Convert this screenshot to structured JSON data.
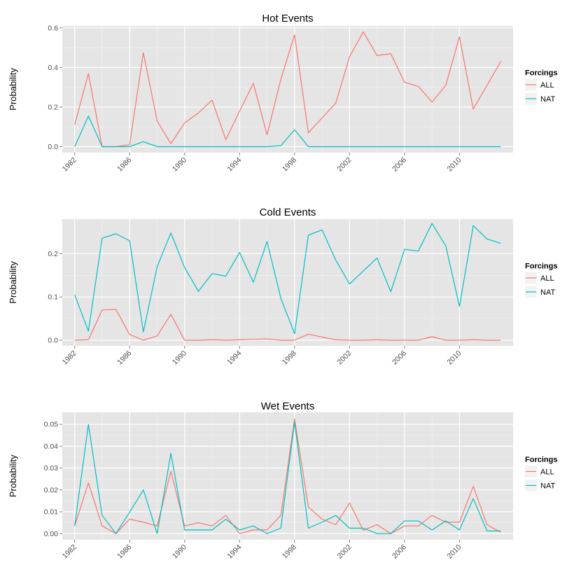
{
  "colors": {
    "ALL": "#F8766D",
    "NAT": "#00BFC4",
    "panel": "#E5E5E5",
    "grid_major": "#FFFFFF",
    "grid_minor": "#F2F2F2"
  },
  "chart_data": [
    {
      "type": "line",
      "title": "Hot Events",
      "ylabel": "Probability",
      "xlabel": "",
      "ylim": [
        -0.03,
        0.61
      ],
      "yticks": [
        0.0,
        0.2,
        0.4,
        0.6
      ],
      "ytick_labels": [
        "0.0",
        "0.2",
        "0.4",
        "0.6"
      ],
      "xlim": [
        1981.1,
        2013.9
      ],
      "xticks": [
        1982,
        1986,
        1990,
        1994,
        1998,
        2002,
        2006,
        2010
      ],
      "xtick_labels": [
        "1982",
        "1986",
        "1990",
        "1994",
        "1998",
        "2002",
        "2006",
        "2010"
      ],
      "grid": true,
      "legend": {
        "title": "Forcings",
        "position": "right",
        "entries": [
          "ALL",
          "NAT"
        ]
      },
      "x": [
        1982,
        1983,
        1984,
        1985,
        1986,
        1987,
        1988,
        1989,
        1990,
        1991,
        1992,
        1993,
        1994,
        1995,
        1996,
        1997,
        1998,
        1999,
        2000,
        2001,
        2002,
        2003,
        2004,
        2005,
        2006,
        2007,
        2008,
        2009,
        2010,
        2011,
        2012,
        2013
      ],
      "series": [
        {
          "name": "ALL",
          "values": [
            0.11,
            0.37,
            0.0,
            0.0,
            0.01,
            0.475,
            0.13,
            0.015,
            0.12,
            0.17,
            0.235,
            0.035,
            0.18,
            0.32,
            0.06,
            0.34,
            0.565,
            0.07,
            0.145,
            0.22,
            0.455,
            0.58,
            0.46,
            0.47,
            0.325,
            0.305,
            0.225,
            0.31,
            0.555,
            0.19,
            0.31,
            0.43
          ]
        },
        {
          "name": "NAT",
          "values": [
            0.0,
            0.155,
            0.0,
            0.0,
            0.0,
            0.025,
            0.0,
            0.0,
            0.0,
            0.0,
            0.0,
            0.0,
            0.0,
            0.0,
            0.0,
            0.005,
            0.085,
            0.0,
            0.0,
            0.0,
            0.0,
            0.0,
            0.0,
            0.0,
            0.0,
            0.0,
            0.0,
            0.0,
            0.0,
            0.0,
            0.0,
            0.0
          ]
        }
      ]
    },
    {
      "type": "line",
      "title": "Cold Events",
      "ylabel": "Probability",
      "xlabel": "",
      "ylim": [
        -0.013,
        0.28
      ],
      "yticks": [
        0.0,
        0.1,
        0.2
      ],
      "ytick_labels": [
        "0.0",
        "0.1",
        "0.2"
      ],
      "xlim": [
        1981.1,
        2013.9
      ],
      "xticks": [
        1982,
        1986,
        1990,
        1994,
        1998,
        2002,
        2006,
        2010
      ],
      "xtick_labels": [
        "1982",
        "1986",
        "1990",
        "1994",
        "1998",
        "2002",
        "2006",
        "2010"
      ],
      "grid": true,
      "legend": {
        "title": "Forcings",
        "position": "right",
        "entries": [
          "ALL",
          "NAT"
        ]
      },
      "x": [
        1982,
        1983,
        1984,
        1985,
        1986,
        1987,
        1988,
        1989,
        1990,
        1991,
        1992,
        1993,
        1994,
        1995,
        1996,
        1997,
        1998,
        1999,
        2000,
        2001,
        2002,
        2003,
        2004,
        2005,
        2006,
        2007,
        2008,
        2009,
        2010,
        2011,
        2012,
        2013
      ],
      "series": [
        {
          "name": "ALL",
          "values": [
            0.0,
            0.001,
            0.07,
            0.071,
            0.013,
            0.0,
            0.01,
            0.06,
            0.0,
            0.0,
            0.001,
            0.0,
            0.001,
            0.002,
            0.003,
            0.0,
            0.0,
            0.014,
            0.007,
            0.001,
            0.0,
            0.0,
            0.001,
            0.0,
            0.0,
            0.0,
            0.008,
            0.0,
            0.0,
            0.001,
            0.0,
            0.0
          ]
        },
        {
          "name": "NAT",
          "values": [
            0.105,
            0.021,
            0.236,
            0.246,
            0.23,
            0.019,
            0.17,
            0.248,
            0.168,
            0.113,
            0.154,
            0.148,
            0.203,
            0.134,
            0.228,
            0.097,
            0.015,
            0.243,
            0.255,
            0.185,
            0.13,
            0.16,
            0.19,
            0.112,
            0.21,
            0.206,
            0.27,
            0.218,
            0.078,
            0.265,
            0.234,
            0.224
          ]
        }
      ]
    },
    {
      "type": "line",
      "title": "Wet Events",
      "ylabel": "Probability",
      "xlabel": "",
      "ylim": [
        -0.0028,
        0.0555
      ],
      "yticks": [
        0.0,
        0.01,
        0.02,
        0.03,
        0.04,
        0.05
      ],
      "ytick_labels": [
        "0.00",
        "0.01",
        "0.02",
        "0.03",
        "0.04",
        "0.05"
      ],
      "xlim": [
        1981.1,
        2013.9
      ],
      "xticks": [
        1982,
        1986,
        1990,
        1994,
        1998,
        2002,
        2006,
        2010
      ],
      "xtick_labels": [
        "1982",
        "1986",
        "1990",
        "1994",
        "1998",
        "2002",
        "2006",
        "2010"
      ],
      "grid": true,
      "legend": {
        "title": "Forcings",
        "position": "right",
        "entries": [
          "ALL",
          "NAT"
        ]
      },
      "x": [
        1982,
        1983,
        1984,
        1985,
        1986,
        1987,
        1988,
        1989,
        1990,
        1991,
        1992,
        1993,
        1994,
        1995,
        1996,
        1997,
        1998,
        1999,
        2000,
        2001,
        2002,
        2003,
        2004,
        2005,
        2006,
        2007,
        2008,
        2009,
        2010,
        2011,
        2012,
        2013
      ],
      "series": [
        {
          "name": "ALL",
          "values": [
            0.0035,
            0.0232,
            0.0035,
            0.0,
            0.0066,
            0.0052,
            0.0035,
            0.0285,
            0.0035,
            0.005,
            0.0035,
            0.0083,
            0.0,
            0.0017,
            0.0017,
            0.0083,
            0.0525,
            0.0122,
            0.0066,
            0.0041,
            0.014,
            0.0015,
            0.0041,
            0.0,
            0.0035,
            0.0035,
            0.0083,
            0.0052,
            0.0052,
            0.0216,
            0.0041,
            0.0006
          ]
        },
        {
          "name": "NAT",
          "values": [
            0.0035,
            0.05,
            0.0083,
            0.0,
            0.0098,
            0.02,
            0.0,
            0.0367,
            0.0017,
            0.0017,
            0.0017,
            0.0066,
            0.0017,
            0.0035,
            0.0,
            0.0025,
            0.051,
            0.0025,
            0.0052,
            0.0083,
            0.0025,
            0.0025,
            0.0,
            0.0,
            0.0058,
            0.0058,
            0.0017,
            0.0058,
            0.0017,
            0.016,
            0.0012,
            0.0012
          ]
        }
      ]
    }
  ]
}
